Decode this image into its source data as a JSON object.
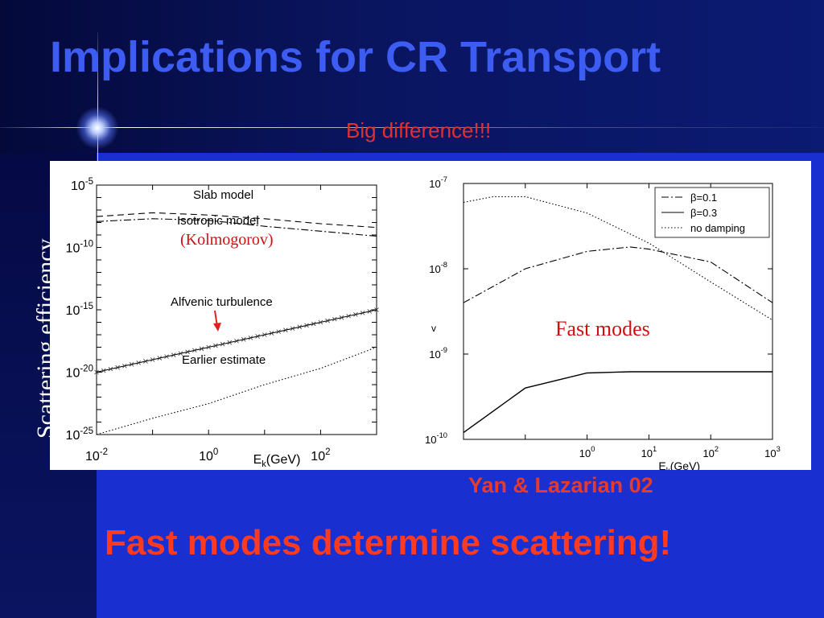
{
  "slide": {
    "title": "Implications for CR Transport",
    "subtitle": "Big difference!!!",
    "vertical_label": "Scattering efficiency",
    "credit": "Yan & Lazarian 02",
    "conclusion": "Fast modes determine scattering!"
  },
  "chart_data": [
    {
      "type": "line",
      "x_scale": "log",
      "y_scale": "log",
      "xlim": [
        0.01,
        1000
      ],
      "ylim": [
        1e-25,
        1e-05
      ],
      "x_tick_labels": [
        "10^-2",
        "10^0",
        "10^2"
      ],
      "y_tick_labels": [
        "10^-5",
        "10^-10",
        "10^-15",
        "10^-20",
        "10^-25"
      ],
      "xlabel": "E_k(GeV)",
      "series": [
        {
          "name": "Slab model",
          "style": "dashed",
          "x": [
            0.01,
            0.1,
            1,
            10,
            100,
            1000
          ],
          "y": [
            3e-08,
            6e-08,
            4e-08,
            2e-08,
            8e-09,
            4e-09
          ]
        },
        {
          "name": "Isotropic model",
          "style": "dashdot",
          "x": [
            0.01,
            0.1,
            1,
            10,
            100,
            1000
          ],
          "y": [
            1.2e-08,
            2e-08,
            1.5e-08,
            5e-09,
            2e-09,
            8e-10
          ]
        },
        {
          "name": "Alfvenic turbulence",
          "style": "solid-marked",
          "x": [
            0.01,
            0.1,
            1,
            10,
            100,
            1000
          ],
          "y": [
            1e-20,
            1e-19,
            1e-18,
            1e-17,
            1e-16,
            1e-15
          ]
        },
        {
          "name": "Earlier estimate",
          "style": "dotted",
          "x": [
            0.01,
            0.1,
            1,
            10,
            100,
            1000
          ],
          "y": [
            1e-25,
            2e-24,
            3e-23,
            1e-21,
            2e-20,
            1e-18
          ]
        }
      ],
      "annotations": [
        "Slab model",
        "Isotropic model",
        "(Kolmogorov)",
        "Alfvenic turbulence",
        "Earlier estimate"
      ]
    },
    {
      "type": "line",
      "x_scale": "log",
      "y_scale": "log",
      "xlim": [
        0.01,
        1000
      ],
      "ylim": [
        1e-10,
        1e-07
      ],
      "x_tick_labels": [
        "10^0",
        "10^1",
        "10^2",
        "10^3"
      ],
      "y_tick_labels": [
        "10^-7",
        "10^-8",
        "10^-9",
        "10^-10"
      ],
      "xlabel": "E_k(GeV)",
      "ylabel": "v",
      "legend": "top-right",
      "series": [
        {
          "name": "β=0.1",
          "style": "dashdot",
          "x": [
            0.01,
            0.1,
            1,
            5,
            10,
            100,
            1000
          ],
          "y": [
            4e-09,
            1e-08,
            1.6e-08,
            1.8e-08,
            1.7e-08,
            1.2e-08,
            4e-09
          ]
        },
        {
          "name": "β=0.3",
          "style": "solid",
          "x": [
            0.01,
            0.1,
            1,
            5,
            10,
            100,
            1000
          ],
          "y": [
            1.2e-10,
            4e-10,
            6e-10,
            6.2e-10,
            6.2e-10,
            6.2e-10,
            6.2e-10
          ]
        },
        {
          "name": "no damping",
          "style": "dotted",
          "x": [
            0.01,
            0.03,
            0.1,
            1,
            10,
            100,
            1000
          ],
          "y": [
            6e-08,
            7e-08,
            7e-08,
            4.5e-08,
            2e-08,
            7e-09,
            2.5e-09
          ]
        }
      ],
      "annotations": [
        "Fast modes"
      ]
    }
  ]
}
